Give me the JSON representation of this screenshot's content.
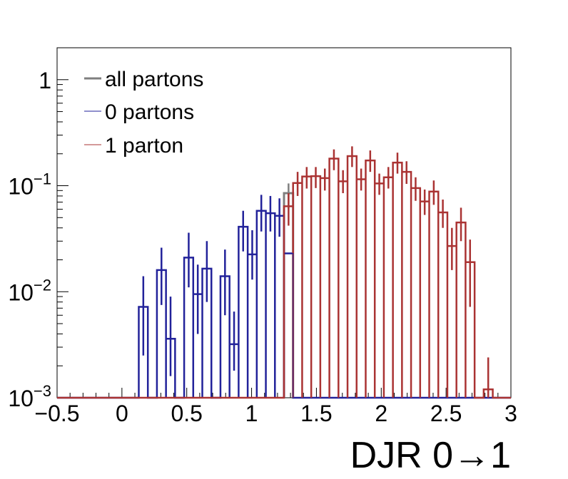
{
  "chart_data": {
    "type": "histogram",
    "xlabel": "DJR 0→1",
    "ylabel": "",
    "xlim": [
      -0.5,
      3.0
    ],
    "ylim": [
      0.001,
      2.0
    ],
    "yscale": "log",
    "legend_position": "top-left",
    "x_ticks": [
      "−0.5",
      "0",
      "0.5",
      "1",
      "1.5",
      "2",
      "2.5",
      "3"
    ],
    "x_tick_values": [
      -0.5,
      0,
      0.5,
      1,
      1.5,
      2,
      2.5,
      3
    ],
    "y_ticks": [
      {
        "value": 1,
        "base": "1",
        "exp": ""
      },
      {
        "value": 0.1,
        "base": "10",
        "exp": "−1"
      },
      {
        "value": 0.01,
        "base": "10",
        "exp": "−2"
      },
      {
        "value": 0.001,
        "base": "10",
        "exp": "−3"
      }
    ],
    "bin_width": 0.07,
    "series": [
      {
        "name": "0 partons",
        "color": "#22229a",
        "line_width": 2.5,
        "bins": [
          {
            "lo": 0.13,
            "hi": 0.2,
            "y": 0.0072,
            "err": [
              0.0025,
              0.014
            ]
          },
          {
            "lo": 0.27,
            "hi": 0.34,
            "y": 0.016,
            "err": [
              0.0075,
              0.026
            ]
          },
          {
            "lo": 0.34,
            "hi": 0.41,
            "y": 0.0036,
            "err": [
              0.0016,
              0.009
            ]
          },
          {
            "lo": 0.48,
            "hi": 0.55,
            "y": 0.021,
            "err": [
              0.011,
              0.036
            ]
          },
          {
            "lo": 0.55,
            "hi": 0.62,
            "y": 0.0095,
            "err": [
              0.004,
              0.018
            ]
          },
          {
            "lo": 0.62,
            "hi": 0.69,
            "y": 0.0165,
            "err": [
              0.008,
              0.03
            ]
          },
          {
            "lo": 0.76,
            "hi": 0.83,
            "y": 0.014,
            "err": [
              0.006,
              0.025
            ]
          },
          {
            "lo": 0.83,
            "hi": 0.9,
            "y": 0.0032,
            "err": [
              0.0018,
              0.0065
            ]
          },
          {
            "lo": 0.9,
            "hi": 0.97,
            "y": 0.041,
            "err": [
              0.024,
              0.058
            ]
          },
          {
            "lo": 0.97,
            "hi": 1.04,
            "y": 0.0225,
            "err": [
              0.013,
              0.038
            ]
          },
          {
            "lo": 1.04,
            "hi": 1.11,
            "y": 0.058,
            "err": [
              0.037,
              0.082
            ]
          },
          {
            "lo": 1.11,
            "hi": 1.18,
            "y": 0.055,
            "err": [
              0.037,
              0.08
            ]
          },
          {
            "lo": 1.18,
            "hi": 1.25,
            "y": 0.052,
            "err": [
              0.033,
              0.076
            ]
          },
          {
            "lo": 1.25,
            "hi": 1.32,
            "y": 0.023,
            "err": [
              0.023,
              0.023
            ]
          }
        ]
      },
      {
        "name": "1 parton",
        "color": "#aa3333",
        "line_width": 2.5,
        "bins": [
          {
            "lo": 1.25,
            "hi": 1.32,
            "y": 0.064,
            "err": [
              0.042,
              0.085
            ]
          },
          {
            "lo": 1.32,
            "hi": 1.39,
            "y": 0.106,
            "err": [
              0.08,
              0.135
            ]
          },
          {
            "lo": 1.39,
            "hi": 1.46,
            "y": 0.122,
            "err": [
              0.094,
              0.15
            ]
          },
          {
            "lo": 1.46,
            "hi": 1.53,
            "y": 0.123,
            "err": [
              0.095,
              0.15
            ]
          },
          {
            "lo": 1.53,
            "hi": 1.6,
            "y": 0.118,
            "err": [
              0.09,
              0.145
            ]
          },
          {
            "lo": 1.6,
            "hi": 1.67,
            "y": 0.18,
            "err": [
              0.14,
              0.22
            ]
          },
          {
            "lo": 1.67,
            "hi": 1.74,
            "y": 0.11,
            "err": [
              0.085,
              0.14
            ]
          },
          {
            "lo": 1.74,
            "hi": 1.81,
            "y": 0.19,
            "err": [
              0.15,
              0.235
            ]
          },
          {
            "lo": 1.81,
            "hi": 1.88,
            "y": 0.115,
            "err": [
              0.09,
              0.145
            ]
          },
          {
            "lo": 1.88,
            "hi": 1.95,
            "y": 0.173,
            "err": [
              0.135,
              0.215
            ]
          },
          {
            "lo": 1.95,
            "hi": 2.02,
            "y": 0.105,
            "err": [
              0.082,
              0.13
            ]
          },
          {
            "lo": 2.02,
            "hi": 2.09,
            "y": 0.12,
            "err": [
              0.094,
              0.15
            ]
          },
          {
            "lo": 2.09,
            "hi": 2.16,
            "y": 0.165,
            "err": [
              0.13,
              0.205
            ]
          },
          {
            "lo": 2.16,
            "hi": 2.23,
            "y": 0.135,
            "err": [
              0.104,
              0.17
            ]
          },
          {
            "lo": 2.23,
            "hi": 2.3,
            "y": 0.095,
            "err": [
              0.072,
              0.12
            ]
          },
          {
            "lo": 2.3,
            "hi": 2.37,
            "y": 0.071,
            "err": [
              0.053,
              0.092
            ]
          },
          {
            "lo": 2.37,
            "hi": 2.44,
            "y": 0.088,
            "err": [
              0.066,
              0.112
            ]
          },
          {
            "lo": 2.44,
            "hi": 2.51,
            "y": 0.056,
            "err": [
              0.04,
              0.074
            ]
          },
          {
            "lo": 2.51,
            "hi": 2.58,
            "y": 0.027,
            "err": [
              0.016,
              0.04
            ]
          },
          {
            "lo": 2.58,
            "hi": 2.65,
            "y": 0.045,
            "err": [
              0.03,
              0.062
            ]
          },
          {
            "lo": 2.65,
            "hi": 2.72,
            "y": 0.019,
            "err": [
              0.0072,
              0.031
            ]
          },
          {
            "lo": 2.79,
            "hi": 2.86,
            "y": 0.0012,
            "err": [
              0.001,
              0.0024
            ]
          }
        ]
      },
      {
        "name": "all partons",
        "color": "#7f7f7f",
        "line_width": 3,
        "bins": [
          {
            "lo": 1.25,
            "hi": 1.32,
            "y": 0.085,
            "err": [
              0.06,
              0.105
            ]
          }
        ]
      }
    ]
  }
}
